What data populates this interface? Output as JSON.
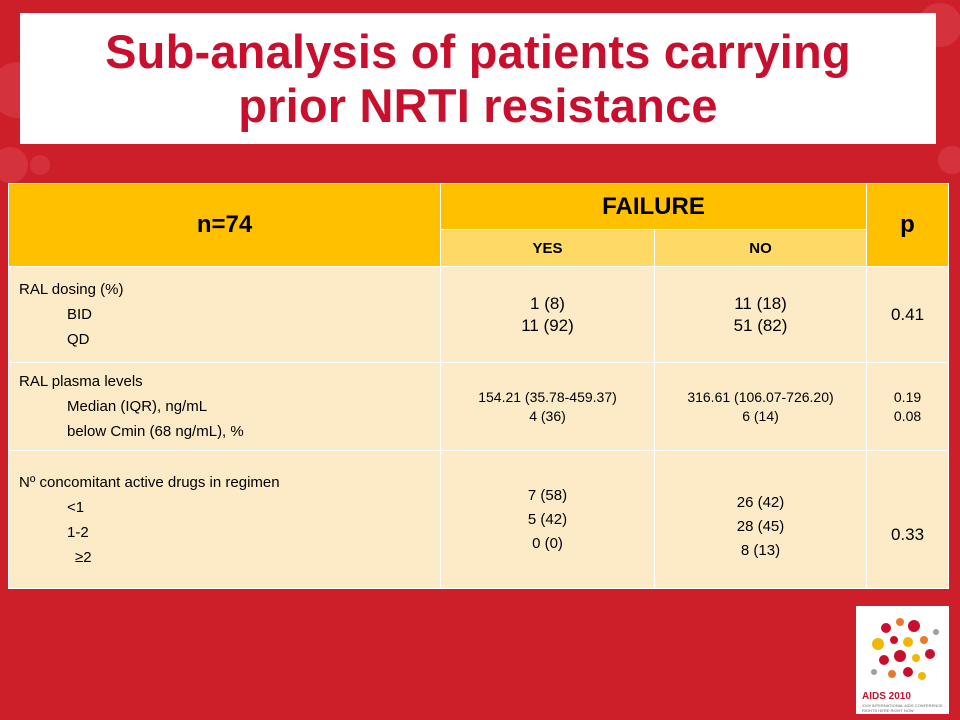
{
  "title": {
    "line1": "Sub-analysis of patients carrying",
    "line2": "prior NRTI resistance"
  },
  "table": {
    "header": {
      "n": "n=74",
      "failure": "FAILURE",
      "p": "p",
      "yes": "YES",
      "no": "NO"
    },
    "rows": [
      {
        "label": "RAL dosing (%)",
        "sub": [
          "BID",
          "QD"
        ],
        "yes": [
          "1 (8)",
          "11 (92)"
        ],
        "no": [
          "11 (18)",
          "51 (82)"
        ],
        "p": [
          "0.41"
        ]
      },
      {
        "label": "RAL plasma levels",
        "sub": [
          "Median (IQR), ng/mL",
          "below Cmin (68 ng/mL), %"
        ],
        "yes": [
          "154.21 (35.78-459.37)",
          "4 (36)"
        ],
        "no": [
          "316.61 (106.07-726.20)",
          "6 (14)"
        ],
        "p": [
          "0.19",
          "0.08"
        ]
      },
      {
        "label": "Nº concomitant active drugs in regimen",
        "sub": [
          "<1",
          "1-2",
          "≥2"
        ],
        "yes": [
          "7 (58)",
          "5 (42)",
          "0 (0)"
        ],
        "no": [
          "26 (42)",
          "28 (45)",
          "8 (13)"
        ],
        "p": [
          "0.33"
        ]
      }
    ]
  },
  "logo": {
    "name": "AIDS 2010",
    "sub": "XVIII INTERNATIONAL AIDS CONFERENCE RIGHTS HERE RIGHT NOW"
  },
  "colors": {
    "background": "#cc1f2a",
    "title": "#c8102e",
    "header": "#ffc000",
    "subheader": "#ffd966",
    "body": "#fdebc8"
  }
}
